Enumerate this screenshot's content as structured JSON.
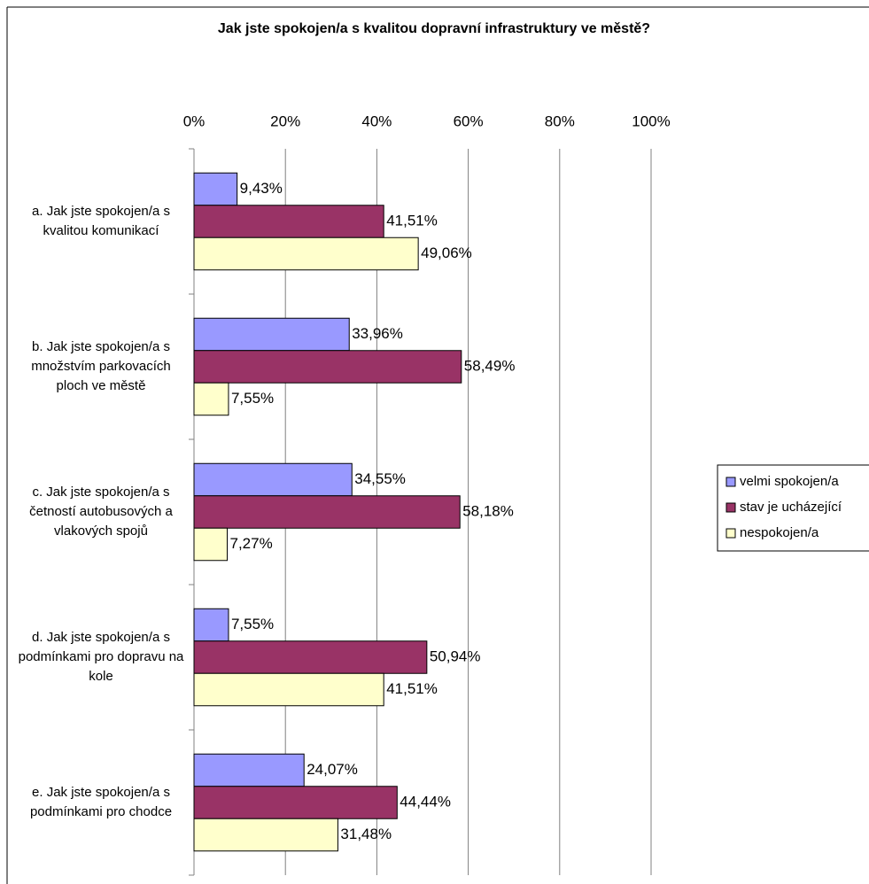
{
  "chart_data": {
    "type": "bar",
    "orientation": "horizontal",
    "title": "Jak jste spokojen/a s kvalitou dopravní infrastruktury ve městě?",
    "categories": [
      "a. Jak jste spokojen/a s kvalitou komunikací",
      "b. Jak jste spokojen/a s množstvím parkovacích ploch ve městě",
      "c. Jak jste spokojen/a s četností autobusových a vlakových spojů",
      "d. Jak jste spokojen/a s podmínkami pro dopravu na kole",
      "e. Jak jste spokojen/a s podmínkami pro chodce"
    ],
    "series": [
      {
        "name": "velmi spokojen/a",
        "color": "#9999ff",
        "values": [
          9.43,
          33.96,
          34.55,
          7.55,
          24.07
        ],
        "value_labels": [
          "9,43%",
          "33,96%",
          "34,55%",
          "7,55%",
          "24,07%"
        ]
      },
      {
        "name": "stav je ucházející",
        "color": "#993366",
        "values": [
          41.51,
          58.49,
          58.18,
          50.94,
          44.44
        ],
        "value_labels": [
          "41,51%",
          "58,49%",
          "58,18%",
          "50,94%",
          "44,44%"
        ]
      },
      {
        "name": "nespokojen/a",
        "color": "#ffffcc",
        "values": [
          49.06,
          7.55,
          7.27,
          41.51,
          31.48
        ],
        "value_labels": [
          "49,06%",
          "7,55%",
          "7,27%",
          "41,51%",
          "31,48%"
        ]
      }
    ],
    "xlim": [
      0,
      100
    ],
    "xticks": [
      {
        "value": 0,
        "label": "0%"
      },
      {
        "value": 20,
        "label": "20%"
      },
      {
        "value": 40,
        "label": "40%"
      },
      {
        "value": 60,
        "label": "60%"
      },
      {
        "value": 80,
        "label": "80%"
      },
      {
        "value": 100,
        "label": "100%"
      }
    ],
    "grid": true,
    "legend": "right"
  }
}
